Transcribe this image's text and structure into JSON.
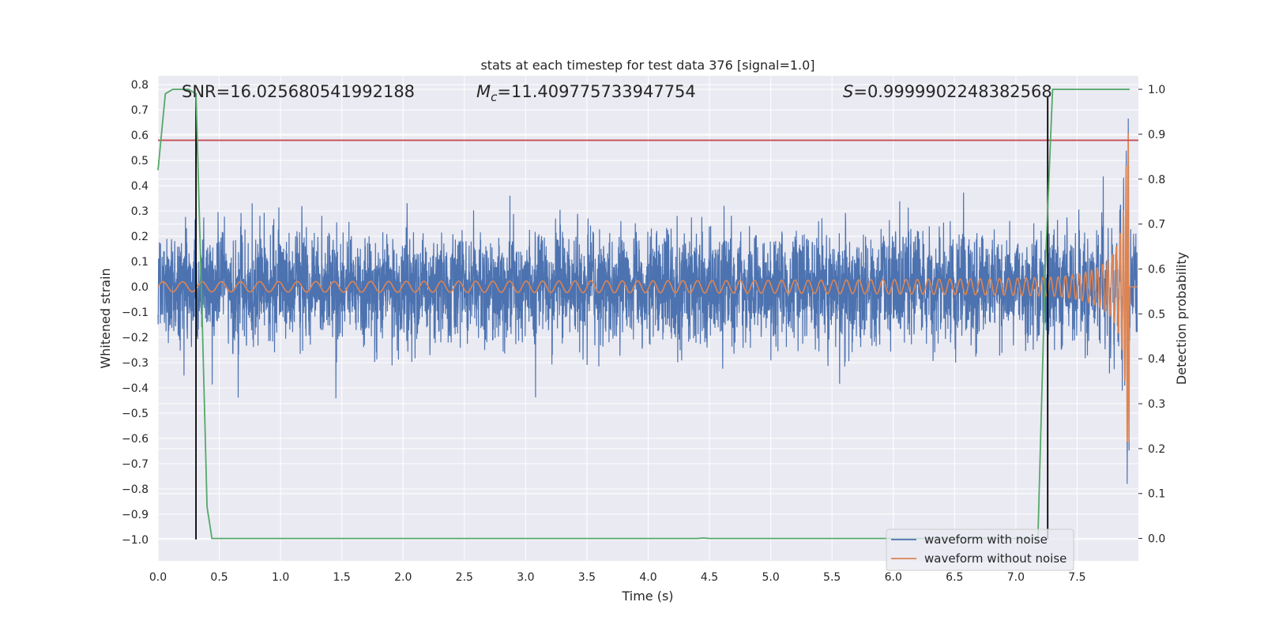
{
  "chart_data": {
    "type": "line",
    "title": "stats at each timestep for test data 376 [signal=1.0]",
    "xlabel": "Time (s)",
    "ylabel": "Whitened strain",
    "y2label": "Detection probability",
    "xlim": [
      0.0,
      8.0
    ],
    "ylim": [
      -1.085,
      0.835
    ],
    "y2lim": [
      -0.05,
      1.03
    ],
    "xticks": [
      "0.0",
      "0.5",
      "1.0",
      "1.5",
      "2.0",
      "2.5",
      "3.0",
      "3.5",
      "4.0",
      "4.5",
      "5.0",
      "5.5",
      "6.0",
      "6.5",
      "7.0",
      "7.5"
    ],
    "xtick_values": [
      0.0,
      0.5,
      1.0,
      1.5,
      2.0,
      2.5,
      3.0,
      3.5,
      4.0,
      4.5,
      5.0,
      5.5,
      6.0,
      6.5,
      7.0,
      7.5
    ],
    "yticks": [
      "0.8",
      "0.7",
      "0.6",
      "0.5",
      "0.4",
      "0.3",
      "0.2",
      "0.1",
      "0.0",
      "−0.1",
      "−0.2",
      "−0.3",
      "−0.4",
      "−0.5",
      "−0.6",
      "−0.7",
      "−0.8",
      "−0.9",
      "−1.0"
    ],
    "ytick_values": [
      0.8,
      0.7,
      0.6,
      0.5,
      0.4,
      0.3,
      0.2,
      0.1,
      0.0,
      -0.1,
      -0.2,
      -0.3,
      -0.4,
      -0.5,
      -0.6,
      -0.7,
      -0.8,
      -0.9,
      -1.0
    ],
    "y2ticks": [
      "1.0",
      "0.9",
      "0.8",
      "0.7",
      "0.6",
      "0.5",
      "0.4",
      "0.3",
      "0.2",
      "0.1",
      "0.0"
    ],
    "y2tick_values": [
      1.0,
      0.9,
      0.8,
      0.7,
      0.6,
      0.5,
      0.4,
      0.3,
      0.2,
      0.1,
      0.0
    ],
    "annotations": {
      "snr": "SNR=16.025680541992188",
      "mc_symbol": "M",
      "mc_subscript": "c",
      "mc_value": "=11.409775733947754",
      "s_symbol": "S",
      "s_value": "=0.9999902248382568"
    },
    "threshold_y": 0.58,
    "vlines_x": [
      0.31,
      7.26
    ],
    "series": [
      {
        "name": "waveform with noise",
        "color": "#4c72b0",
        "noise_amplitude": 0.18,
        "peak_abs": 0.78
      },
      {
        "name": "waveform without noise",
        "color": "#dd8452",
        "chirp_start_amplitude": 0.02,
        "chirp_peak_amplitude": 0.62,
        "merger_time": 7.93
      }
    ],
    "probability_series": {
      "color": "#55a868",
      "x": [
        0.0,
        0.06,
        0.12,
        0.25,
        0.31,
        0.36,
        0.4,
        0.44,
        1.0,
        2.0,
        3.0,
        4.0,
        4.4,
        4.45,
        4.5,
        5.0,
        6.0,
        7.0,
        7.18,
        7.24,
        7.3,
        7.5,
        7.93
      ],
      "y": [
        0.82,
        0.99,
        1.0,
        1.0,
        0.99,
        0.5,
        0.07,
        0.0,
        0.0,
        0.0,
        0.0,
        0.0,
        0.0,
        0.001,
        0.0,
        0.0,
        0.0,
        0.0,
        0.0,
        0.6,
        1.0,
        1.0,
        1.0
      ]
    },
    "threshold_color": "#c44e52",
    "vline_color": "#000000",
    "legend": {
      "placement": "lower-right"
    }
  }
}
